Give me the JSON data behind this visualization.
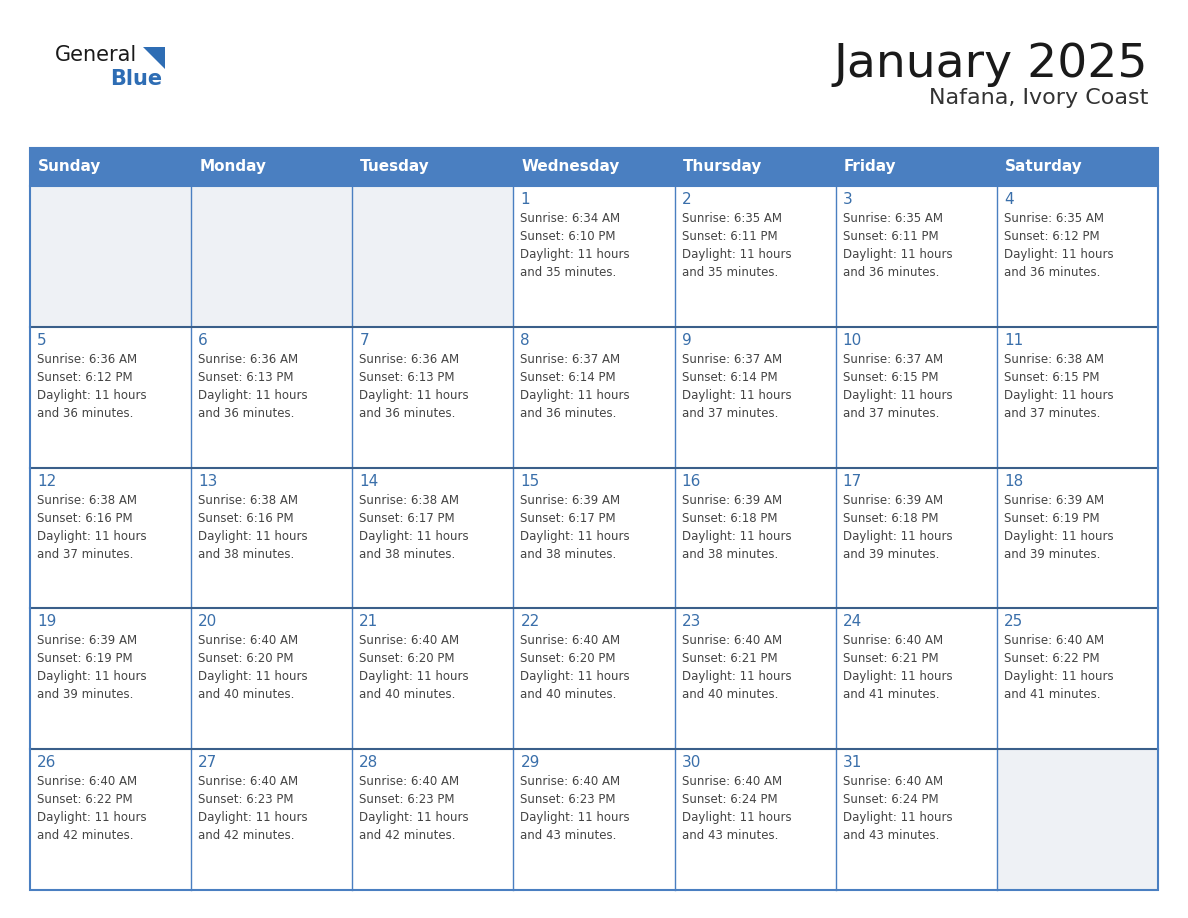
{
  "title": "January 2025",
  "subtitle": "Nafana, Ivory Coast",
  "header_bg": "#4a7fc1",
  "header_text": "#ffffff",
  "cell_bg_empty": "#eef1f5",
  "cell_bg_filled": "#ffffff",
  "grid_line_color": "#4a7fc1",
  "row_separator_color": "#3a5f8a",
  "day_names": [
    "Sunday",
    "Monday",
    "Tuesday",
    "Wednesday",
    "Thursday",
    "Friday",
    "Saturday"
  ],
  "title_color": "#1a1a1a",
  "subtitle_color": "#333333",
  "day_number_color": "#3a6faa",
  "cell_text_color": "#444444",
  "calendar_data": [
    [
      null,
      null,
      null,
      {
        "day": 1,
        "sunrise": "6:34 AM",
        "sunset": "6:10 PM",
        "daylight": "11 hours and 35 minutes"
      },
      {
        "day": 2,
        "sunrise": "6:35 AM",
        "sunset": "6:11 PM",
        "daylight": "11 hours and 35 minutes"
      },
      {
        "day": 3,
        "sunrise": "6:35 AM",
        "sunset": "6:11 PM",
        "daylight": "11 hours and 36 minutes"
      },
      {
        "day": 4,
        "sunrise": "6:35 AM",
        "sunset": "6:12 PM",
        "daylight": "11 hours and 36 minutes"
      }
    ],
    [
      {
        "day": 5,
        "sunrise": "6:36 AM",
        "sunset": "6:12 PM",
        "daylight": "11 hours and 36 minutes"
      },
      {
        "day": 6,
        "sunrise": "6:36 AM",
        "sunset": "6:13 PM",
        "daylight": "11 hours and 36 minutes"
      },
      {
        "day": 7,
        "sunrise": "6:36 AM",
        "sunset": "6:13 PM",
        "daylight": "11 hours and 36 minutes"
      },
      {
        "day": 8,
        "sunrise": "6:37 AM",
        "sunset": "6:14 PM",
        "daylight": "11 hours and 36 minutes"
      },
      {
        "day": 9,
        "sunrise": "6:37 AM",
        "sunset": "6:14 PM",
        "daylight": "11 hours and 37 minutes"
      },
      {
        "day": 10,
        "sunrise": "6:37 AM",
        "sunset": "6:15 PM",
        "daylight": "11 hours and 37 minutes"
      },
      {
        "day": 11,
        "sunrise": "6:38 AM",
        "sunset": "6:15 PM",
        "daylight": "11 hours and 37 minutes"
      }
    ],
    [
      {
        "day": 12,
        "sunrise": "6:38 AM",
        "sunset": "6:16 PM",
        "daylight": "11 hours and 37 minutes"
      },
      {
        "day": 13,
        "sunrise": "6:38 AM",
        "sunset": "6:16 PM",
        "daylight": "11 hours and 38 minutes"
      },
      {
        "day": 14,
        "sunrise": "6:38 AM",
        "sunset": "6:17 PM",
        "daylight": "11 hours and 38 minutes"
      },
      {
        "day": 15,
        "sunrise": "6:39 AM",
        "sunset": "6:17 PM",
        "daylight": "11 hours and 38 minutes"
      },
      {
        "day": 16,
        "sunrise": "6:39 AM",
        "sunset": "6:18 PM",
        "daylight": "11 hours and 38 minutes"
      },
      {
        "day": 17,
        "sunrise": "6:39 AM",
        "sunset": "6:18 PM",
        "daylight": "11 hours and 39 minutes"
      },
      {
        "day": 18,
        "sunrise": "6:39 AM",
        "sunset": "6:19 PM",
        "daylight": "11 hours and 39 minutes"
      }
    ],
    [
      {
        "day": 19,
        "sunrise": "6:39 AM",
        "sunset": "6:19 PM",
        "daylight": "11 hours and 39 minutes"
      },
      {
        "day": 20,
        "sunrise": "6:40 AM",
        "sunset": "6:20 PM",
        "daylight": "11 hours and 40 minutes"
      },
      {
        "day": 21,
        "sunrise": "6:40 AM",
        "sunset": "6:20 PM",
        "daylight": "11 hours and 40 minutes"
      },
      {
        "day": 22,
        "sunrise": "6:40 AM",
        "sunset": "6:20 PM",
        "daylight": "11 hours and 40 minutes"
      },
      {
        "day": 23,
        "sunrise": "6:40 AM",
        "sunset": "6:21 PM",
        "daylight": "11 hours and 40 minutes"
      },
      {
        "day": 24,
        "sunrise": "6:40 AM",
        "sunset": "6:21 PM",
        "daylight": "11 hours and 41 minutes"
      },
      {
        "day": 25,
        "sunrise": "6:40 AM",
        "sunset": "6:22 PM",
        "daylight": "11 hours and 41 minutes"
      }
    ],
    [
      {
        "day": 26,
        "sunrise": "6:40 AM",
        "sunset": "6:22 PM",
        "daylight": "11 hours and 42 minutes"
      },
      {
        "day": 27,
        "sunrise": "6:40 AM",
        "sunset": "6:23 PM",
        "daylight": "11 hours and 42 minutes"
      },
      {
        "day": 28,
        "sunrise": "6:40 AM",
        "sunset": "6:23 PM",
        "daylight": "11 hours and 42 minutes"
      },
      {
        "day": 29,
        "sunrise": "6:40 AM",
        "sunset": "6:23 PM",
        "daylight": "11 hours and 43 minutes"
      },
      {
        "day": 30,
        "sunrise": "6:40 AM",
        "sunset": "6:24 PM",
        "daylight": "11 hours and 43 minutes"
      },
      {
        "day": 31,
        "sunrise": "6:40 AM",
        "sunset": "6:24 PM",
        "daylight": "11 hours and 43 minutes"
      },
      null
    ]
  ]
}
